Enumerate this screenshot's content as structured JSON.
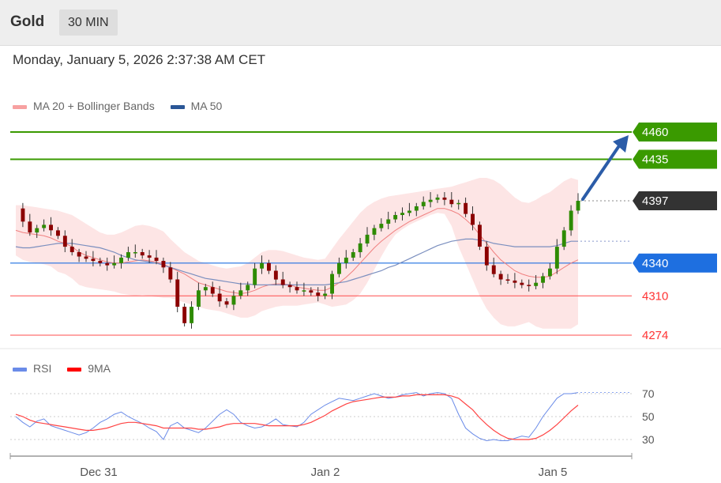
{
  "header": {
    "symbol": "Gold",
    "timeframe": "30 MIN"
  },
  "timestamp": "Monday, January 5, 2026 2:37:38 AM CET",
  "legend_main": [
    {
      "label": "MA 20 + Bollinger Bands",
      "color": "#f08080"
    },
    {
      "label": "MA 50",
      "color": "#2b5797"
    }
  ],
  "legend_rsi": [
    {
      "label": "RSI",
      "color": "#6a8be8"
    },
    {
      "label": "9MA",
      "color": "#ff0000"
    }
  ],
  "chart_data": [
    {
      "type": "candlestick",
      "title": "Gold",
      "timeframe": "30 MIN",
      "ylim": [
        4270,
        4470
      ],
      "x_ticks": [
        "Dec 31",
        "Jan 2",
        "Jan 5"
      ],
      "levels": [
        {
          "value": 4460,
          "label": "4460",
          "kind": "resistance",
          "color": "#3a9a00"
        },
        {
          "value": 4435,
          "label": "4435",
          "kind": "resistance",
          "color": "#3a9a00"
        },
        {
          "value": 4397,
          "label": "4397",
          "kind": "current",
          "color": "#333333"
        },
        {
          "value": 4340,
          "label": "4340",
          "kind": "pivot",
          "color": "#1e6fe0"
        },
        {
          "value": 4310,
          "label": "4310",
          "kind": "support",
          "color": "#ff4d4d"
        },
        {
          "value": 4274,
          "label": "4274",
          "kind": "support",
          "color": "#ff4d4d"
        }
      ],
      "projection": {
        "from": 4397,
        "to": 4460,
        "direction": "up"
      },
      "series": [
        {
          "name": "Price",
          "values": [
            4390,
            4378,
            4368,
            4372,
            4375,
            4370,
            4365,
            4355,
            4350,
            4346,
            4344,
            4342,
            4340,
            4338,
            4340,
            4345,
            4350,
            4350,
            4347,
            4345,
            4342,
            4336,
            4325,
            4300,
            4285,
            4300,
            4315,
            4318,
            4312,
            4305,
            4302,
            4310,
            4315,
            4320,
            4335,
            4340,
            4333,
            4325,
            4320,
            4318,
            4315,
            4315,
            4313,
            4310,
            4312,
            4330,
            4340,
            4345,
            4350,
            4358,
            4366,
            4372,
            4376,
            4380,
            4384,
            4386,
            4388,
            4392,
            4396,
            4398,
            4400,
            4398,
            4394,
            4395,
            4385,
            4375,
            4355,
            4338,
            4330,
            4325,
            4324,
            4322,
            4320,
            4319,
            4322,
            4328,
            4335,
            4355,
            4370,
            4388,
            4397
          ]
        },
        {
          "name": "MA 20",
          "values": [
            4370,
            4368,
            4367,
            4366,
            4365,
            4363,
            4360,
            4358,
            4355,
            4350,
            4347,
            4345,
            4343,
            4341,
            4340,
            4340,
            4341,
            4342,
            4343,
            4342,
            4341,
            4339,
            4336,
            4333,
            4330,
            4326,
            4322,
            4320,
            4318,
            4316,
            4314,
            4313,
            4312,
            4313,
            4315,
            4318,
            4320,
            4321,
            4321,
            4320,
            4318,
            4317,
            4316,
            4315,
            4315,
            4318,
            4322,
            4327,
            4333,
            4340,
            4347,
            4354,
            4360,
            4365,
            4370,
            4374,
            4378,
            4381,
            4384,
            4387,
            4390,
            4390,
            4388,
            4385,
            4380,
            4374,
            4366,
            4358,
            4350,
            4343,
            4338,
            4333,
            4330,
            4328,
            4327,
            4327,
            4328,
            4332,
            4336,
            4340,
            4343
          ]
        },
        {
          "name": "Bollinger Upper",
          "values": [
            4393,
            4393,
            4392,
            4391,
            4390,
            4389,
            4388,
            4386,
            4384,
            4380,
            4376,
            4372,
            4368,
            4366,
            4366,
            4368,
            4371,
            4374,
            4375,
            4374,
            4372,
            4369,
            4362,
            4356,
            4350,
            4346,
            4342,
            4340,
            4338,
            4336,
            4335,
            4336,
            4337,
            4340,
            4345,
            4350,
            4352,
            4352,
            4351,
            4349,
            4347,
            4345,
            4344,
            4343,
            4344,
            4353,
            4362,
            4370,
            4378,
            4386,
            4392,
            4396,
            4399,
            4401,
            4402,
            4403,
            4404,
            4405,
            4406,
            4407,
            4408,
            4409,
            4410,
            4412,
            4414,
            4416,
            4418,
            4418,
            4416,
            4412,
            4406,
            4400,
            4396,
            4395,
            4398,
            4402,
            4405,
            4410,
            4415,
            4418,
            4416
          ]
        },
        {
          "name": "Bollinger Lower",
          "values": [
            4347,
            4343,
            4341,
            4340,
            4339,
            4337,
            4332,
            4330,
            4326,
            4320,
            4318,
            4317,
            4316,
            4315,
            4314,
            4312,
            4311,
            4310,
            4311,
            4310,
            4309,
            4308,
            4308,
            4306,
            4304,
            4302,
            4300,
            4298,
            4297,
            4296,
            4294,
            4292,
            4290,
            4290,
            4292,
            4296,
            4298,
            4300,
            4301,
            4301,
            4301,
            4302,
            4303,
            4304,
            4302,
            4300,
            4301,
            4302,
            4306,
            4312,
            4322,
            4334,
            4346,
            4357,
            4366,
            4371,
            4375,
            4378,
            4381,
            4384,
            4386,
            4385,
            4374,
            4355,
            4340,
            4325,
            4310,
            4298,
            4290,
            4284,
            4282,
            4282,
            4284,
            4286,
            4282,
            4280,
            4280,
            4280,
            4280,
            4280,
            4284
          ]
        },
        {
          "name": "MA 50",
          "values": [
            4355,
            4354,
            4354,
            4355,
            4356,
            4357,
            4358,
            4358,
            4358,
            4357,
            4356,
            4355,
            4354,
            4352,
            4350,
            4347,
            4345,
            4343,
            4342,
            4341,
            4340,
            4338,
            4336,
            4334,
            4332,
            4330,
            4328,
            4326,
            4325,
            4324,
            4323,
            4322,
            4321,
            4321,
            4320,
            4320,
            4320,
            4320,
            4320,
            4320,
            4320,
            4320,
            4320,
            4320,
            4320,
            4321,
            4322,
            4323,
            4325,
            4327,
            4329,
            4331,
            4333,
            4336,
            4338,
            4341,
            4344,
            4347,
            4350,
            4353,
            4356,
            4358,
            4360,
            4361,
            4362,
            4362,
            4361,
            4360,
            4358,
            4357,
            4356,
            4355,
            4355,
            4355,
            4355,
            4355,
            4355,
            4356,
            4358,
            4360,
            4360
          ]
        }
      ]
    },
    {
      "type": "line",
      "title": "RSI",
      "ylim": [
        20,
        80
      ],
      "y_ticks": [
        70,
        50,
        30
      ],
      "series": [
        {
          "name": "RSI",
          "values": [
            50,
            45,
            41,
            46,
            48,
            42,
            40,
            38,
            36,
            34,
            36,
            40,
            45,
            48,
            52,
            54,
            50,
            47,
            44,
            40,
            37,
            30,
            42,
            45,
            40,
            38,
            36,
            40,
            46,
            52,
            56,
            52,
            45,
            42,
            40,
            41,
            44,
            48,
            43,
            42,
            41,
            45,
            52,
            56,
            60,
            63,
            66,
            65,
            64,
            66,
            68,
            70,
            68,
            66,
            67,
            69,
            70,
            71,
            68,
            70,
            71,
            70,
            66,
            52,
            40,
            35,
            31,
            29,
            30,
            29,
            29,
            31,
            33,
            32,
            40,
            50,
            58,
            66,
            70,
            70,
            71
          ]
        },
        {
          "name": "9MA",
          "values": [
            52,
            50,
            47,
            45,
            44,
            43,
            42,
            41,
            40,
            39,
            38,
            38,
            39,
            40,
            42,
            44,
            45,
            45,
            44,
            43,
            42,
            40,
            40,
            40,
            40,
            40,
            39,
            39,
            40,
            41,
            43,
            44,
            44,
            44,
            44,
            43,
            42,
            42,
            42,
            42,
            42,
            43,
            45,
            48,
            51,
            55,
            58,
            61,
            63,
            64,
            65,
            66,
            67,
            67,
            67,
            68,
            68,
            69,
            69,
            69,
            69,
            69,
            68,
            66,
            61,
            56,
            49,
            43,
            38,
            34,
            31,
            30,
            30,
            30,
            31,
            34,
            38,
            43,
            49,
            55,
            60
          ]
        }
      ]
    }
  ]
}
